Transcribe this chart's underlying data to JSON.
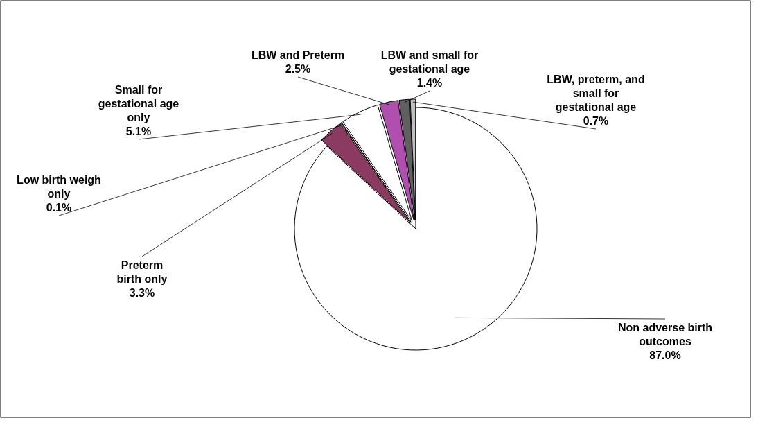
{
  "chart_data": {
    "type": "pie",
    "categories": [
      "Non adverse birth outcomes",
      "Preterm birth only",
      "Low birth weigh only",
      "Small for gestational age only",
      "LBW and Preterm",
      "LBW and small for gestational age",
      "LBW, preterm, and small for gestational age"
    ],
    "values": [
      87.0,
      3.3,
      0.1,
      5.1,
      2.5,
      1.4,
      0.7
    ],
    "value_labels": [
      "87.0%",
      "3.3%",
      "0.1%",
      "5.1%",
      "2.5%",
      "1.4%",
      "0.7%"
    ],
    "colors": [
      "#ffffff",
      "#8b3a62",
      "#404040",
      "#ffffff",
      "#b04fb0",
      "#606060",
      "#c0c0c0"
    ]
  }
}
